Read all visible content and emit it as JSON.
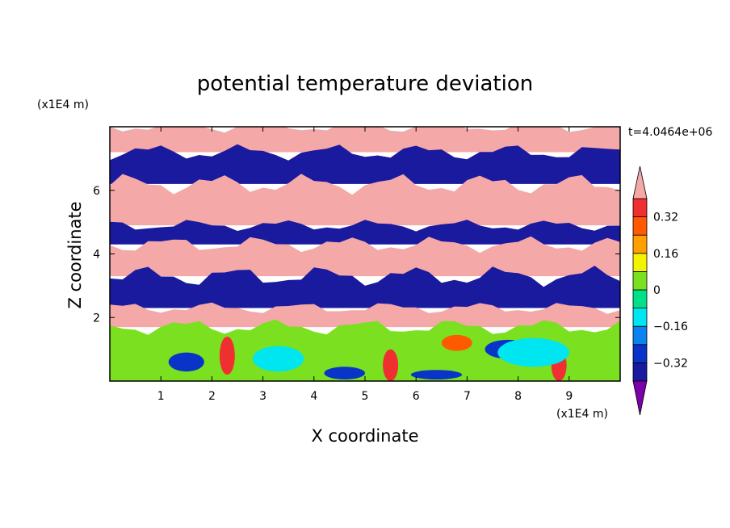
{
  "chart_data": {
    "type": "heatmap",
    "title": "potential temperature deviation",
    "xlabel": "X coordinate",
    "ylabel": "Z coordinate",
    "x_unit": "(x1E4 m)",
    "y_unit": "(x1E4 m)",
    "time_label": "t=4.0464e+06",
    "xlim": [
      0,
      10
    ],
    "ylim": [
      0,
      8
    ],
    "x_ticks": [
      1,
      2,
      3,
      4,
      5,
      6,
      7,
      8,
      9
    ],
    "y_ticks": [
      2,
      4,
      6
    ],
    "grid": false,
    "colorbar": {
      "position": "right",
      "levels": [
        -0.4,
        -0.32,
        -0.24,
        -0.16,
        -0.08,
        0,
        0.08,
        0.16,
        0.24,
        0.32,
        0.4
      ],
      "labels": [
        "0.32",
        "0.16",
        "0",
        "−0.16",
        "−0.32"
      ],
      "label_values": [
        0.32,
        0.16,
        0,
        -0.16,
        -0.32
      ],
      "colors": [
        "#7b00a8",
        "#1a1a9e",
        "#0a34c8",
        "#0a82f0",
        "#00e6f0",
        "#00e08a",
        "#7ae020",
        "#f4f400",
        "#ffa000",
        "#ff5a00",
        "#f03030",
        "#f5a8a8"
      ],
      "extend": "both"
    },
    "regions": [
      {
        "type": "band",
        "value": 0.4,
        "z": [
          7.2,
          8.0
        ]
      },
      {
        "type": "band",
        "value": -0.4,
        "z": [
          6.2,
          7.2
        ]
      },
      {
        "type": "band",
        "value": 0.4,
        "z": [
          4.9,
          6.2
        ]
      },
      {
        "type": "band",
        "value": -0.4,
        "z": [
          4.3,
          4.9
        ]
      },
      {
        "type": "band",
        "value": 0.4,
        "z": [
          3.3,
          4.3
        ]
      },
      {
        "type": "band",
        "value": -0.4,
        "z": [
          2.3,
          3.3
        ]
      },
      {
        "type": "band",
        "value": 0.4,
        "z": [
          1.7,
          2.3
        ]
      },
      {
        "type": "band",
        "value": 0.0,
        "z": [
          0.0,
          1.7
        ]
      },
      {
        "type": "blob",
        "value": -0.32,
        "x": 1.5,
        "z": 0.6,
        "rx": 0.35,
        "rz": 0.3
      },
      {
        "type": "blob",
        "value": -0.32,
        "x": 4.6,
        "z": 0.25,
        "rx": 0.4,
        "rz": 0.2
      },
      {
        "type": "blob",
        "value": -0.32,
        "x": 6.4,
        "z": 0.2,
        "rx": 0.5,
        "rz": 0.15
      },
      {
        "type": "blob",
        "value": -0.32,
        "x": 7.8,
        "z": 1.0,
        "rx": 0.45,
        "rz": 0.3
      },
      {
        "type": "blob",
        "value": 0.32,
        "x": 2.3,
        "z": 0.8,
        "rx": 0.15,
        "rz": 0.6
      },
      {
        "type": "blob",
        "value": 0.32,
        "x": 5.5,
        "z": 0.5,
        "rx": 0.15,
        "rz": 0.5
      },
      {
        "type": "blob",
        "value": 0.32,
        "x": 8.8,
        "z": 0.5,
        "rx": 0.15,
        "rz": 0.5
      },
      {
        "type": "blob",
        "value": 0.24,
        "x": 6.8,
        "z": 1.2,
        "rx": 0.3,
        "rz": 0.25
      },
      {
        "type": "blob",
        "value": -0.16,
        "x": 3.3,
        "z": 0.7,
        "rx": 0.5,
        "rz": 0.4
      },
      {
        "type": "blob",
        "value": -0.16,
        "x": 8.3,
        "z": 0.9,
        "rx": 0.7,
        "rz": 0.45
      }
    ]
  }
}
